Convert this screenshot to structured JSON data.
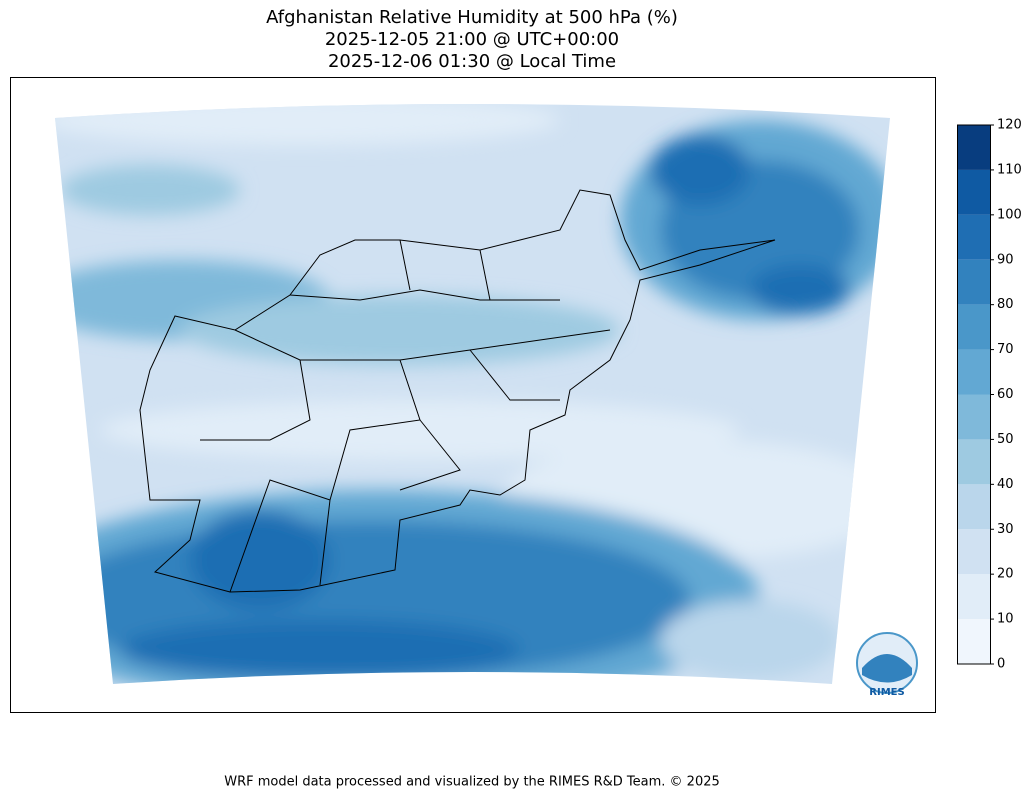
{
  "title": [
    "Afghanistan Relative Humidity at 500 hPa (%)",
    "2025-12-05 21:00 @ UTC+00:00",
    "2025-12-06 01:30 @ Local Time"
  ],
  "colorbar": {
    "ticks": [
      0,
      10,
      20,
      30,
      40,
      50,
      60,
      70,
      80,
      90,
      100,
      110,
      120
    ],
    "colors": [
      "#f0f6fd",
      "#e1edf8",
      "#d0e1f2",
      "#bad6eb",
      "#9ecae1",
      "#7fb9da",
      "#62a8d3",
      "#4a97c9",
      "#3282be",
      "#1f6eb3",
      "#0f5aa3",
      "#083d7f"
    ]
  },
  "logo": "RIMES",
  "footer": "WRF model data processed and visualized by the RIMES R&D Team. © 2025"
}
